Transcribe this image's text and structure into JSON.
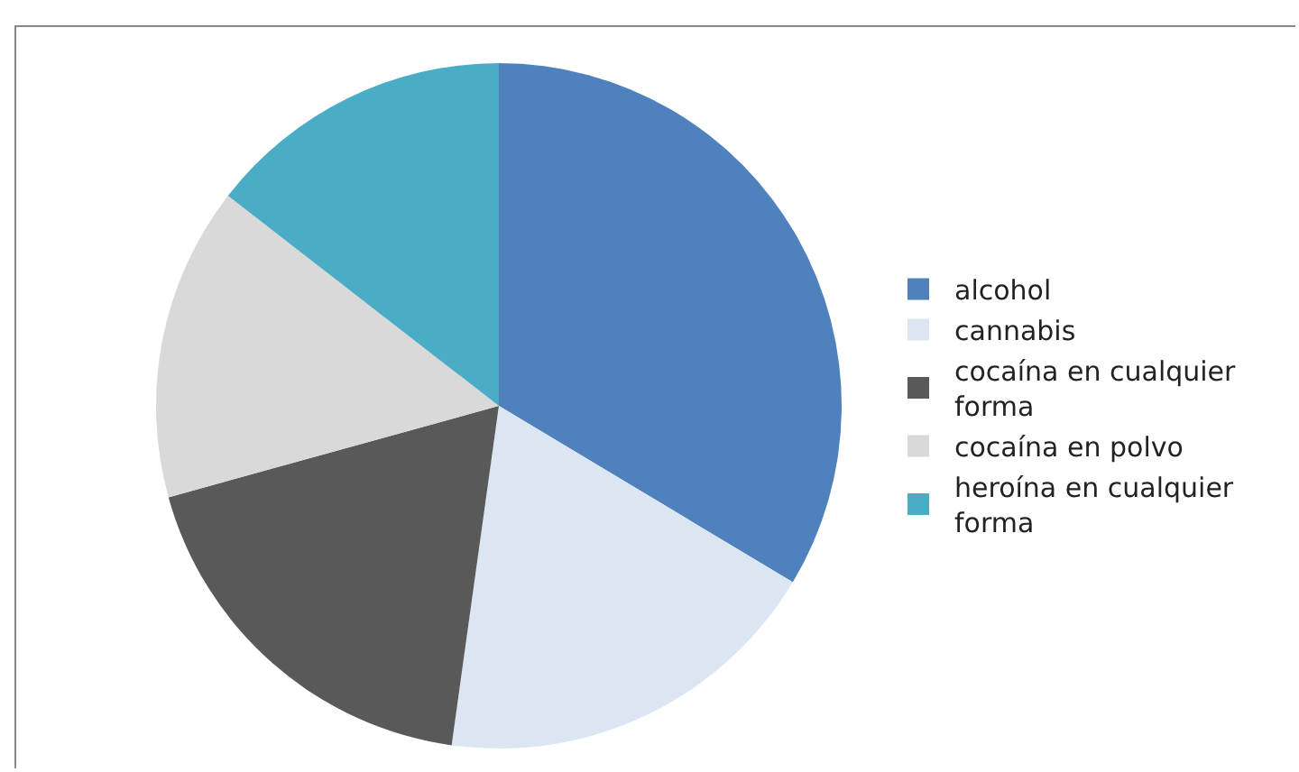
{
  "chart_data": {
    "type": "pie",
    "categories": [
      "alcohol",
      "cannabis",
      "cocaína en cualquier forma",
      "cocaína en polvo",
      "heroína en cualquier forma"
    ],
    "values": [
      33.6,
      18.6,
      18.5,
      14.8,
      14.5
    ],
    "colors": [
      "#4f81bd",
      "#dce6f2",
      "#595959",
      "#d9d9d9",
      "#4bacc6"
    ],
    "legend": "right"
  }
}
